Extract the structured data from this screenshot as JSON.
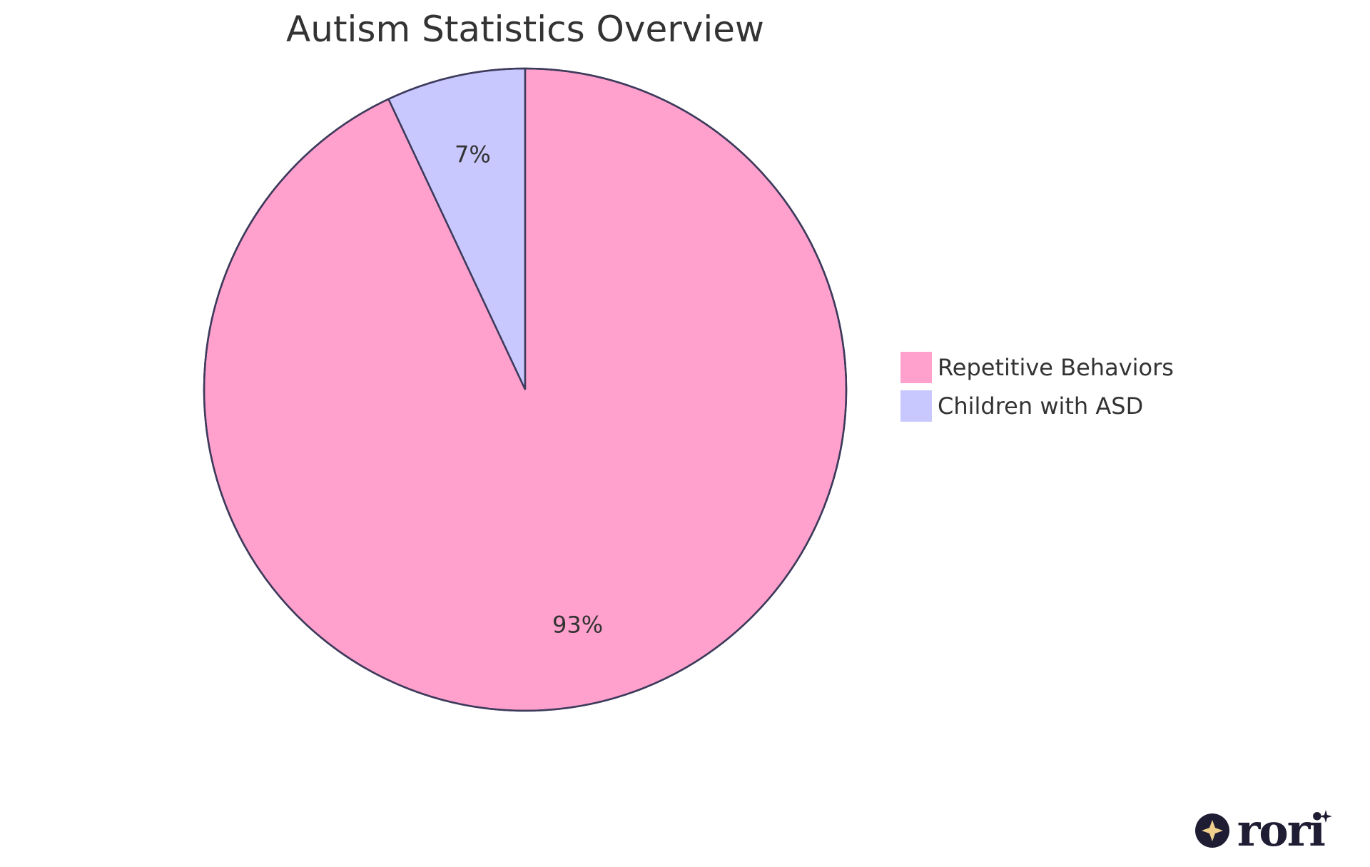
{
  "chart_data": {
    "type": "pie",
    "title": "Autism Statistics Overview",
    "slices": [
      {
        "label": "Children with ASD",
        "value": 7,
        "display": "7%",
        "color": "#c8c8ff"
      },
      {
        "label": "Repetitive Behaviors",
        "value": 93,
        "display": "93%",
        "color": "#ffa1cc"
      }
    ],
    "legend": {
      "placement": "right",
      "entries": [
        {
          "label": "Repetitive Behaviors",
          "color": "#ffa1cc"
        },
        {
          "label": "Children with ASD",
          "color": "#c8c8ff"
        }
      ]
    },
    "stroke_color": "#3d3a5c"
  },
  "logo": {
    "text": "rori",
    "icon": "sparkle-circle-icon",
    "color": "#1f1d33",
    "accent": "#f1cf8d"
  }
}
